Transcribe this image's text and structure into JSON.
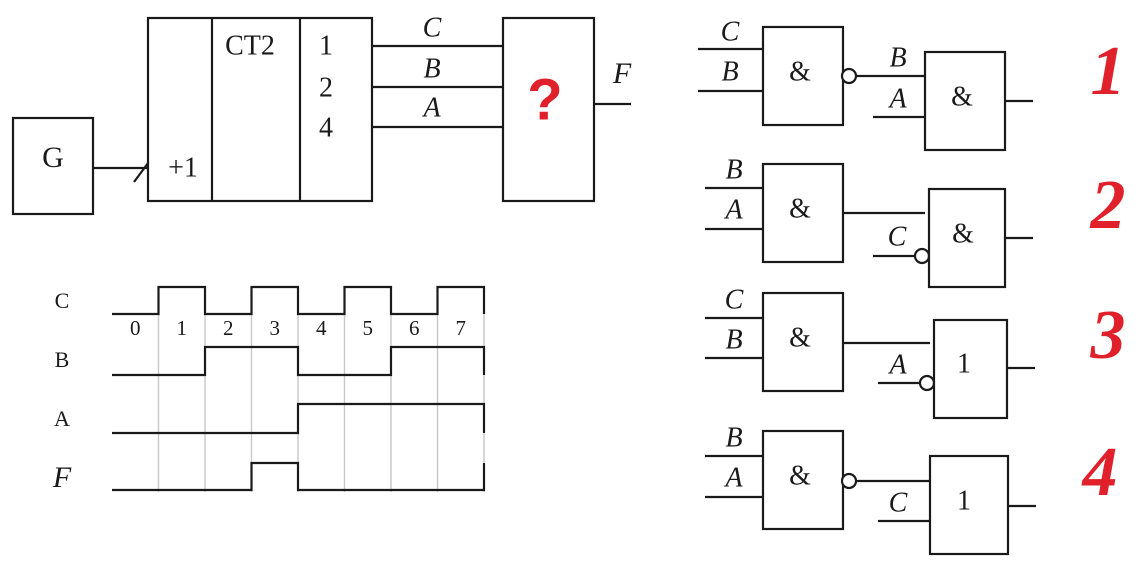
{
  "block_diagram": {
    "generator_label": "G",
    "counter_clock_label": "+1",
    "counter_type_label": "CT2",
    "counter_outputs": [
      "1",
      "2",
      "4"
    ],
    "signal_labels": [
      "C",
      "B",
      "A"
    ],
    "unknown_block_label": "?",
    "output_label": "F"
  },
  "timing_diagram": {
    "signals": [
      "C",
      "B",
      "A",
      "F"
    ],
    "time_labels": [
      "0",
      "1",
      "2",
      "3",
      "4",
      "5",
      "6",
      "7"
    ],
    "levels": {
      "C": [
        0,
        1,
        0,
        1,
        0,
        1,
        0,
        1
      ],
      "B": [
        0,
        0,
        1,
        1,
        0,
        0,
        1,
        1
      ],
      "A": [
        0,
        0,
        0,
        0,
        1,
        1,
        1,
        1
      ],
      "F": [
        0,
        0,
        0,
        1,
        0,
        0,
        0,
        0
      ]
    }
  },
  "options": [
    {
      "number": "1",
      "gate1": {
        "symbol": "&",
        "inputs": [
          "C",
          "B"
        ],
        "inverted_output": true
      },
      "gate2": {
        "symbol": "&",
        "inputs": [
          "B",
          "A"
        ]
      }
    },
    {
      "number": "2",
      "gate1": {
        "symbol": "&",
        "inputs": [
          "B",
          "A"
        ],
        "inverted_output": false
      },
      "gate2": {
        "symbol": "&",
        "inputs": [
          "C"
        ],
        "inverted_input": "C"
      }
    },
    {
      "number": "3",
      "gate1": {
        "symbol": "&",
        "inputs": [
          "C",
          "B"
        ],
        "inverted_output": false
      },
      "gate2": {
        "symbol": "1",
        "inputs": [
          "A"
        ],
        "inverted_input": "A"
      }
    },
    {
      "number": "4",
      "gate1": {
        "symbol": "&",
        "inputs": [
          "B",
          "A"
        ],
        "inverted_output": true
      },
      "gate2": {
        "symbol": "1",
        "inputs": [
          "C"
        ]
      }
    }
  ],
  "colors": {
    "ink": "#1a1a1a",
    "accent": "#e0202a",
    "grid": "#c8c8c8"
  }
}
